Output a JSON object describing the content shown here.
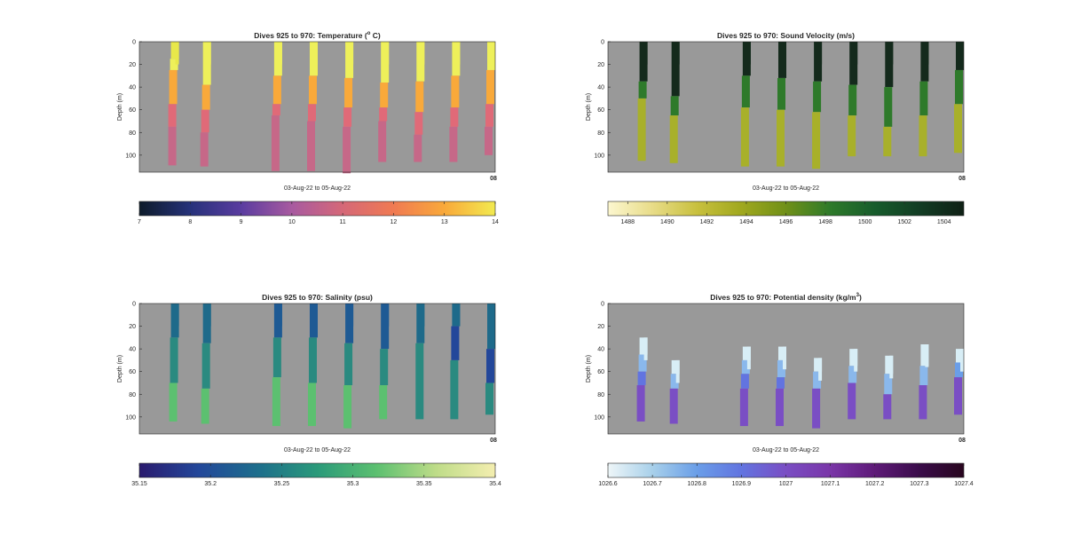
{
  "figure": {
    "background_color": "#ffffff",
    "axes_background": "#999999"
  },
  "chart_data": [
    {
      "type": "heatmap",
      "title": "Dives 925 to 970: Temperature (",
      "title_sup": "o",
      "title_suffix": " C)",
      "xlabel": "03-Aug-22 to 05-Aug-22",
      "ylabel": "Depth (m)",
      "ylim": [
        0,
        115
      ],
      "yticks": [
        0,
        20,
        40,
        60,
        80,
        100
      ],
      "xtick_label": "08",
      "colorbar": {
        "min": 7,
        "max": 14,
        "ticks": [
          "7",
          "8",
          "9",
          "10",
          "11",
          "12",
          "13",
          "14"
        ],
        "colors": [
          "#0d1b2a",
          "#26327a",
          "#5a3ca0",
          "#a85aa0",
          "#d56878",
          "#f07a52",
          "#f9a93a",
          "#f2ea50"
        ]
      },
      "profiles": [
        {
          "pos": 0.1,
          "max_depth": 109,
          "segments": [
            {
              "depth": 0,
              "color": "#e8e84a"
            },
            {
              "depth": 15,
              "color": "#eef05a"
            },
            {
              "depth": 25,
              "color": "#f9a93a"
            },
            {
              "depth": 55,
              "color": "#e06a78"
            },
            {
              "depth": 75,
              "color": "#c66888"
            }
          ]
        },
        {
          "pos": 0.19,
          "max_depth": 110,
          "segments": [
            {
              "depth": 0,
              "color": "#eef05a"
            },
            {
              "depth": 38,
              "color": "#f9a93a"
            },
            {
              "depth": 60,
              "color": "#e06a78"
            },
            {
              "depth": 80,
              "color": "#c66888"
            }
          ]
        },
        {
          "pos": 0.39,
          "max_depth": 114,
          "segments": [
            {
              "depth": 0,
              "color": "#eef05a"
            },
            {
              "depth": 30,
              "color": "#f9a93a"
            },
            {
              "depth": 55,
              "color": "#e06a78"
            },
            {
              "depth": 65,
              "color": "#c66888"
            }
          ]
        },
        {
          "pos": 0.49,
          "max_depth": 114,
          "segments": [
            {
              "depth": 0,
              "color": "#eef05a"
            },
            {
              "depth": 30,
              "color": "#f9a93a"
            },
            {
              "depth": 55,
              "color": "#e06a78"
            },
            {
              "depth": 70,
              "color": "#c66888"
            }
          ]
        },
        {
          "pos": 0.59,
          "max_depth": 116,
          "segments": [
            {
              "depth": 0,
              "color": "#eef05a"
            },
            {
              "depth": 32,
              "color": "#f9a93a"
            },
            {
              "depth": 58,
              "color": "#e06a78"
            },
            {
              "depth": 75,
              "color": "#c66888"
            }
          ]
        },
        {
          "pos": 0.69,
          "max_depth": 106,
          "segments": [
            {
              "depth": 0,
              "color": "#eef05a"
            },
            {
              "depth": 36,
              "color": "#f9a93a"
            },
            {
              "depth": 58,
              "color": "#e06a78"
            },
            {
              "depth": 70,
              "color": "#c66888"
            }
          ]
        },
        {
          "pos": 0.79,
          "max_depth": 106,
          "segments": [
            {
              "depth": 0,
              "color": "#eef05a"
            },
            {
              "depth": 35,
              "color": "#f9a93a"
            },
            {
              "depth": 62,
              "color": "#e06a78"
            },
            {
              "depth": 82,
              "color": "#c66888"
            }
          ]
        },
        {
          "pos": 0.89,
          "max_depth": 106,
          "segments": [
            {
              "depth": 0,
              "color": "#eef05a"
            },
            {
              "depth": 30,
              "color": "#f9a93a"
            },
            {
              "depth": 58,
              "color": "#e06a78"
            },
            {
              "depth": 75,
              "color": "#c66888"
            }
          ]
        },
        {
          "pos": 0.99,
          "max_depth": 100,
          "segments": [
            {
              "depth": 0,
              "color": "#eef05a"
            },
            {
              "depth": 25,
              "color": "#f9a93a"
            },
            {
              "depth": 55,
              "color": "#e06a78"
            },
            {
              "depth": 75,
              "color": "#c66888"
            }
          ]
        }
      ]
    },
    {
      "type": "heatmap",
      "title": "Dives 925 to 970: Sound Velocity (m/s)",
      "title_sup": "",
      "title_suffix": "",
      "xlabel": "03-Aug-22 to 05-Aug-22",
      "ylabel": "Depth (m)",
      "ylim": [
        0,
        115
      ],
      "yticks": [
        0,
        20,
        40,
        60,
        80,
        100
      ],
      "xtick_label": "08",
      "colorbar": {
        "min": 1487,
        "max": 1505,
        "ticks": [
          "1488",
          "1490",
          "1492",
          "1494",
          "1496",
          "1498",
          "1500",
          "1502",
          "1504"
        ],
        "colors": [
          "#fcf7d0",
          "#e8dc88",
          "#c8c03e",
          "#a0a81e",
          "#709018",
          "#2e7a2a",
          "#175c2c",
          "#123d24",
          "#0f2015"
        ]
      },
      "profiles": [
        {
          "pos": 0.1,
          "max_depth": 105,
          "segments": [
            {
              "depth": 0,
              "color": "#142a1c"
            },
            {
              "depth": 35,
              "color": "#2e7a2a"
            },
            {
              "depth": 50,
              "color": "#a8b02a"
            }
          ]
        },
        {
          "pos": 0.19,
          "max_depth": 107,
          "segments": [
            {
              "depth": 0,
              "color": "#142a1c"
            },
            {
              "depth": 48,
              "color": "#2e7a2a"
            },
            {
              "depth": 65,
              "color": "#a8b02a"
            }
          ]
        },
        {
          "pos": 0.39,
          "max_depth": 110,
          "segments": [
            {
              "depth": 0,
              "color": "#142a1c"
            },
            {
              "depth": 30,
              "color": "#2e7a2a"
            },
            {
              "depth": 58,
              "color": "#a8b02a"
            }
          ]
        },
        {
          "pos": 0.49,
          "max_depth": 110,
          "segments": [
            {
              "depth": 0,
              "color": "#142a1c"
            },
            {
              "depth": 32,
              "color": "#2e7a2a"
            },
            {
              "depth": 60,
              "color": "#a8b02a"
            }
          ]
        },
        {
          "pos": 0.59,
          "max_depth": 112,
          "segments": [
            {
              "depth": 0,
              "color": "#142a1c"
            },
            {
              "depth": 35,
              "color": "#2e7a2a"
            },
            {
              "depth": 62,
              "color": "#a8b02a"
            }
          ]
        },
        {
          "pos": 0.69,
          "max_depth": 101,
          "segments": [
            {
              "depth": 0,
              "color": "#142a1c"
            },
            {
              "depth": 38,
              "color": "#2e7a2a"
            },
            {
              "depth": 65,
              "color": "#a8b02a"
            }
          ]
        },
        {
          "pos": 0.79,
          "max_depth": 101,
          "segments": [
            {
              "depth": 0,
              "color": "#142a1c"
            },
            {
              "depth": 40,
              "color": "#2e7a2a"
            },
            {
              "depth": 75,
              "color": "#a8b02a"
            }
          ]
        },
        {
          "pos": 0.89,
          "max_depth": 101,
          "segments": [
            {
              "depth": 0,
              "color": "#142a1c"
            },
            {
              "depth": 35,
              "color": "#2e7a2a"
            },
            {
              "depth": 65,
              "color": "#a8b02a"
            }
          ]
        },
        {
          "pos": 0.99,
          "max_depth": 98,
          "segments": [
            {
              "depth": 0,
              "color": "#142a1c"
            },
            {
              "depth": 25,
              "color": "#2e7a2a"
            },
            {
              "depth": 55,
              "color": "#a8b02a"
            }
          ]
        }
      ]
    },
    {
      "type": "heatmap",
      "title": "Dives 925 to 970: Salinity (psu)",
      "title_sup": "",
      "title_suffix": "",
      "xlabel": "03-Aug-22 to 05-Aug-22",
      "ylabel": "Depth (m)",
      "ylim": [
        0,
        115
      ],
      "yticks": [
        0,
        20,
        40,
        60,
        80,
        100
      ],
      "xtick_label": "08",
      "colorbar": {
        "min": 35.15,
        "max": 35.4,
        "ticks": [
          "35.15",
          "35.2",
          "35.25",
          "35.3",
          "35.35",
          "35.4"
        ],
        "colors": [
          "#2a1b6e",
          "#23479a",
          "#1d6e8c",
          "#2a9a7a",
          "#5cc070",
          "#bedc88",
          "#f4eeb0"
        ]
      },
      "profiles": [
        {
          "pos": 0.1,
          "max_depth": 104,
          "segments": [
            {
              "depth": 0,
              "color": "#1e6a8a"
            },
            {
              "depth": 30,
              "color": "#2a8a80"
            },
            {
              "depth": 70,
              "color": "#5cc070"
            }
          ]
        },
        {
          "pos": 0.19,
          "max_depth": 106,
          "segments": [
            {
              "depth": 0,
              "color": "#1e6a8a"
            },
            {
              "depth": 35,
              "color": "#2a8a80"
            },
            {
              "depth": 75,
              "color": "#5cc070"
            }
          ]
        },
        {
          "pos": 0.39,
          "max_depth": 108,
          "segments": [
            {
              "depth": 0,
              "color": "#1e5a94"
            },
            {
              "depth": 30,
              "color": "#2a8a80"
            },
            {
              "depth": 65,
              "color": "#5cc070"
            }
          ]
        },
        {
          "pos": 0.49,
          "max_depth": 108,
          "segments": [
            {
              "depth": 0,
              "color": "#1e5a94"
            },
            {
              "depth": 30,
              "color": "#2a8a80"
            },
            {
              "depth": 70,
              "color": "#5cc070"
            }
          ]
        },
        {
          "pos": 0.59,
          "max_depth": 110,
          "segments": [
            {
              "depth": 0,
              "color": "#1e5a94"
            },
            {
              "depth": 35,
              "color": "#2a8a80"
            },
            {
              "depth": 72,
              "color": "#5cc070"
            }
          ]
        },
        {
          "pos": 0.69,
          "max_depth": 102,
          "segments": [
            {
              "depth": 0,
              "color": "#1e5a94"
            },
            {
              "depth": 40,
              "color": "#2a8a80"
            },
            {
              "depth": 72,
              "color": "#5cc070"
            }
          ]
        },
        {
          "pos": 0.79,
          "max_depth": 102,
          "segments": [
            {
              "depth": 0,
              "color": "#1e6a8a"
            },
            {
              "depth": 35,
              "color": "#2a8a80"
            }
          ]
        },
        {
          "pos": 0.89,
          "max_depth": 102,
          "segments": [
            {
              "depth": 0,
              "color": "#1e6a8a"
            },
            {
              "depth": 20,
              "color": "#23479a"
            },
            {
              "depth": 50,
              "color": "#2a8a80"
            }
          ]
        },
        {
          "pos": 0.99,
          "max_depth": 98,
          "segments": [
            {
              "depth": 0,
              "color": "#1e6a8a"
            },
            {
              "depth": 40,
              "color": "#23479a"
            },
            {
              "depth": 70,
              "color": "#2a8a80"
            }
          ]
        }
      ]
    },
    {
      "type": "heatmap",
      "title": "Dives 925 to 970: Potential density (kg/m",
      "title_sup": "3",
      "title_suffix": ")",
      "xlabel": "03-Aug-22 to 05-Aug-22",
      "ylabel": "Depth (m)",
      "ylim": [
        0,
        115
      ],
      "yticks": [
        0,
        20,
        40,
        60,
        80,
        100
      ],
      "xtick_label": "08",
      "colorbar": {
        "min": 1026.6,
        "max": 1027.4,
        "ticks": [
          "1026.6",
          "1026.7",
          "1026.8",
          "1026.9",
          "1027",
          "1027.1",
          "1027.2",
          "1027.3",
          "1027.4"
        ],
        "colors": [
          "#eef6f8",
          "#a8d0ea",
          "#6a9ee8",
          "#6274e0",
          "#7a4ec4",
          "#7a36a8",
          "#5e1a78",
          "#3a0c4a",
          "#28061e"
        ]
      },
      "profiles": [
        {
          "pos": 0.1,
          "start_depth": 30,
          "max_depth": 104,
          "segments": [
            {
              "depth": 30,
              "color": "#d8eef6"
            },
            {
              "depth": 45,
              "color": "#8ab8ec"
            },
            {
              "depth": 60,
              "color": "#6274e0"
            },
            {
              "depth": 72,
              "color": "#7a4ec4"
            }
          ]
        },
        {
          "pos": 0.19,
          "start_depth": 50,
          "max_depth": 106,
          "segments": [
            {
              "depth": 50,
              "color": "#d8eef6"
            },
            {
              "depth": 62,
              "color": "#8ab8ec"
            },
            {
              "depth": 75,
              "color": "#7a4ec4"
            }
          ]
        },
        {
          "pos": 0.39,
          "start_depth": 38,
          "max_depth": 108,
          "segments": [
            {
              "depth": 38,
              "color": "#d8eef6"
            },
            {
              "depth": 50,
              "color": "#8ab8ec"
            },
            {
              "depth": 62,
              "color": "#6274e0"
            },
            {
              "depth": 75,
              "color": "#7a4ec4"
            }
          ]
        },
        {
          "pos": 0.49,
          "start_depth": 38,
          "max_depth": 108,
          "segments": [
            {
              "depth": 38,
              "color": "#d8eef6"
            },
            {
              "depth": 50,
              "color": "#8ab8ec"
            },
            {
              "depth": 65,
              "color": "#6274e0"
            },
            {
              "depth": 75,
              "color": "#7a4ec4"
            }
          ]
        },
        {
          "pos": 0.59,
          "start_depth": 48,
          "max_depth": 110,
          "segments": [
            {
              "depth": 48,
              "color": "#d8eef6"
            },
            {
              "depth": 60,
              "color": "#8ab8ec"
            },
            {
              "depth": 75,
              "color": "#7a4ec4"
            }
          ]
        },
        {
          "pos": 0.69,
          "start_depth": 40,
          "max_depth": 102,
          "segments": [
            {
              "depth": 40,
              "color": "#d8eef6"
            },
            {
              "depth": 55,
              "color": "#8ab8ec"
            },
            {
              "depth": 70,
              "color": "#7a4ec4"
            }
          ]
        },
        {
          "pos": 0.79,
          "start_depth": 46,
          "max_depth": 102,
          "segments": [
            {
              "depth": 46,
              "color": "#d8eef6"
            },
            {
              "depth": 62,
              "color": "#8ab8ec"
            },
            {
              "depth": 80,
              "color": "#7a4ec4"
            }
          ]
        },
        {
          "pos": 0.89,
          "start_depth": 36,
          "max_depth": 102,
          "segments": [
            {
              "depth": 36,
              "color": "#d8eef6"
            },
            {
              "depth": 55,
              "color": "#8ab8ec"
            },
            {
              "depth": 72,
              "color": "#7a4ec4"
            }
          ]
        },
        {
          "pos": 0.99,
          "start_depth": 40,
          "max_depth": 98,
          "segments": [
            {
              "depth": 40,
              "color": "#d8eef6"
            },
            {
              "depth": 52,
              "color": "#6a9ee8"
            },
            {
              "depth": 65,
              "color": "#7a4ec4"
            }
          ]
        }
      ]
    }
  ]
}
